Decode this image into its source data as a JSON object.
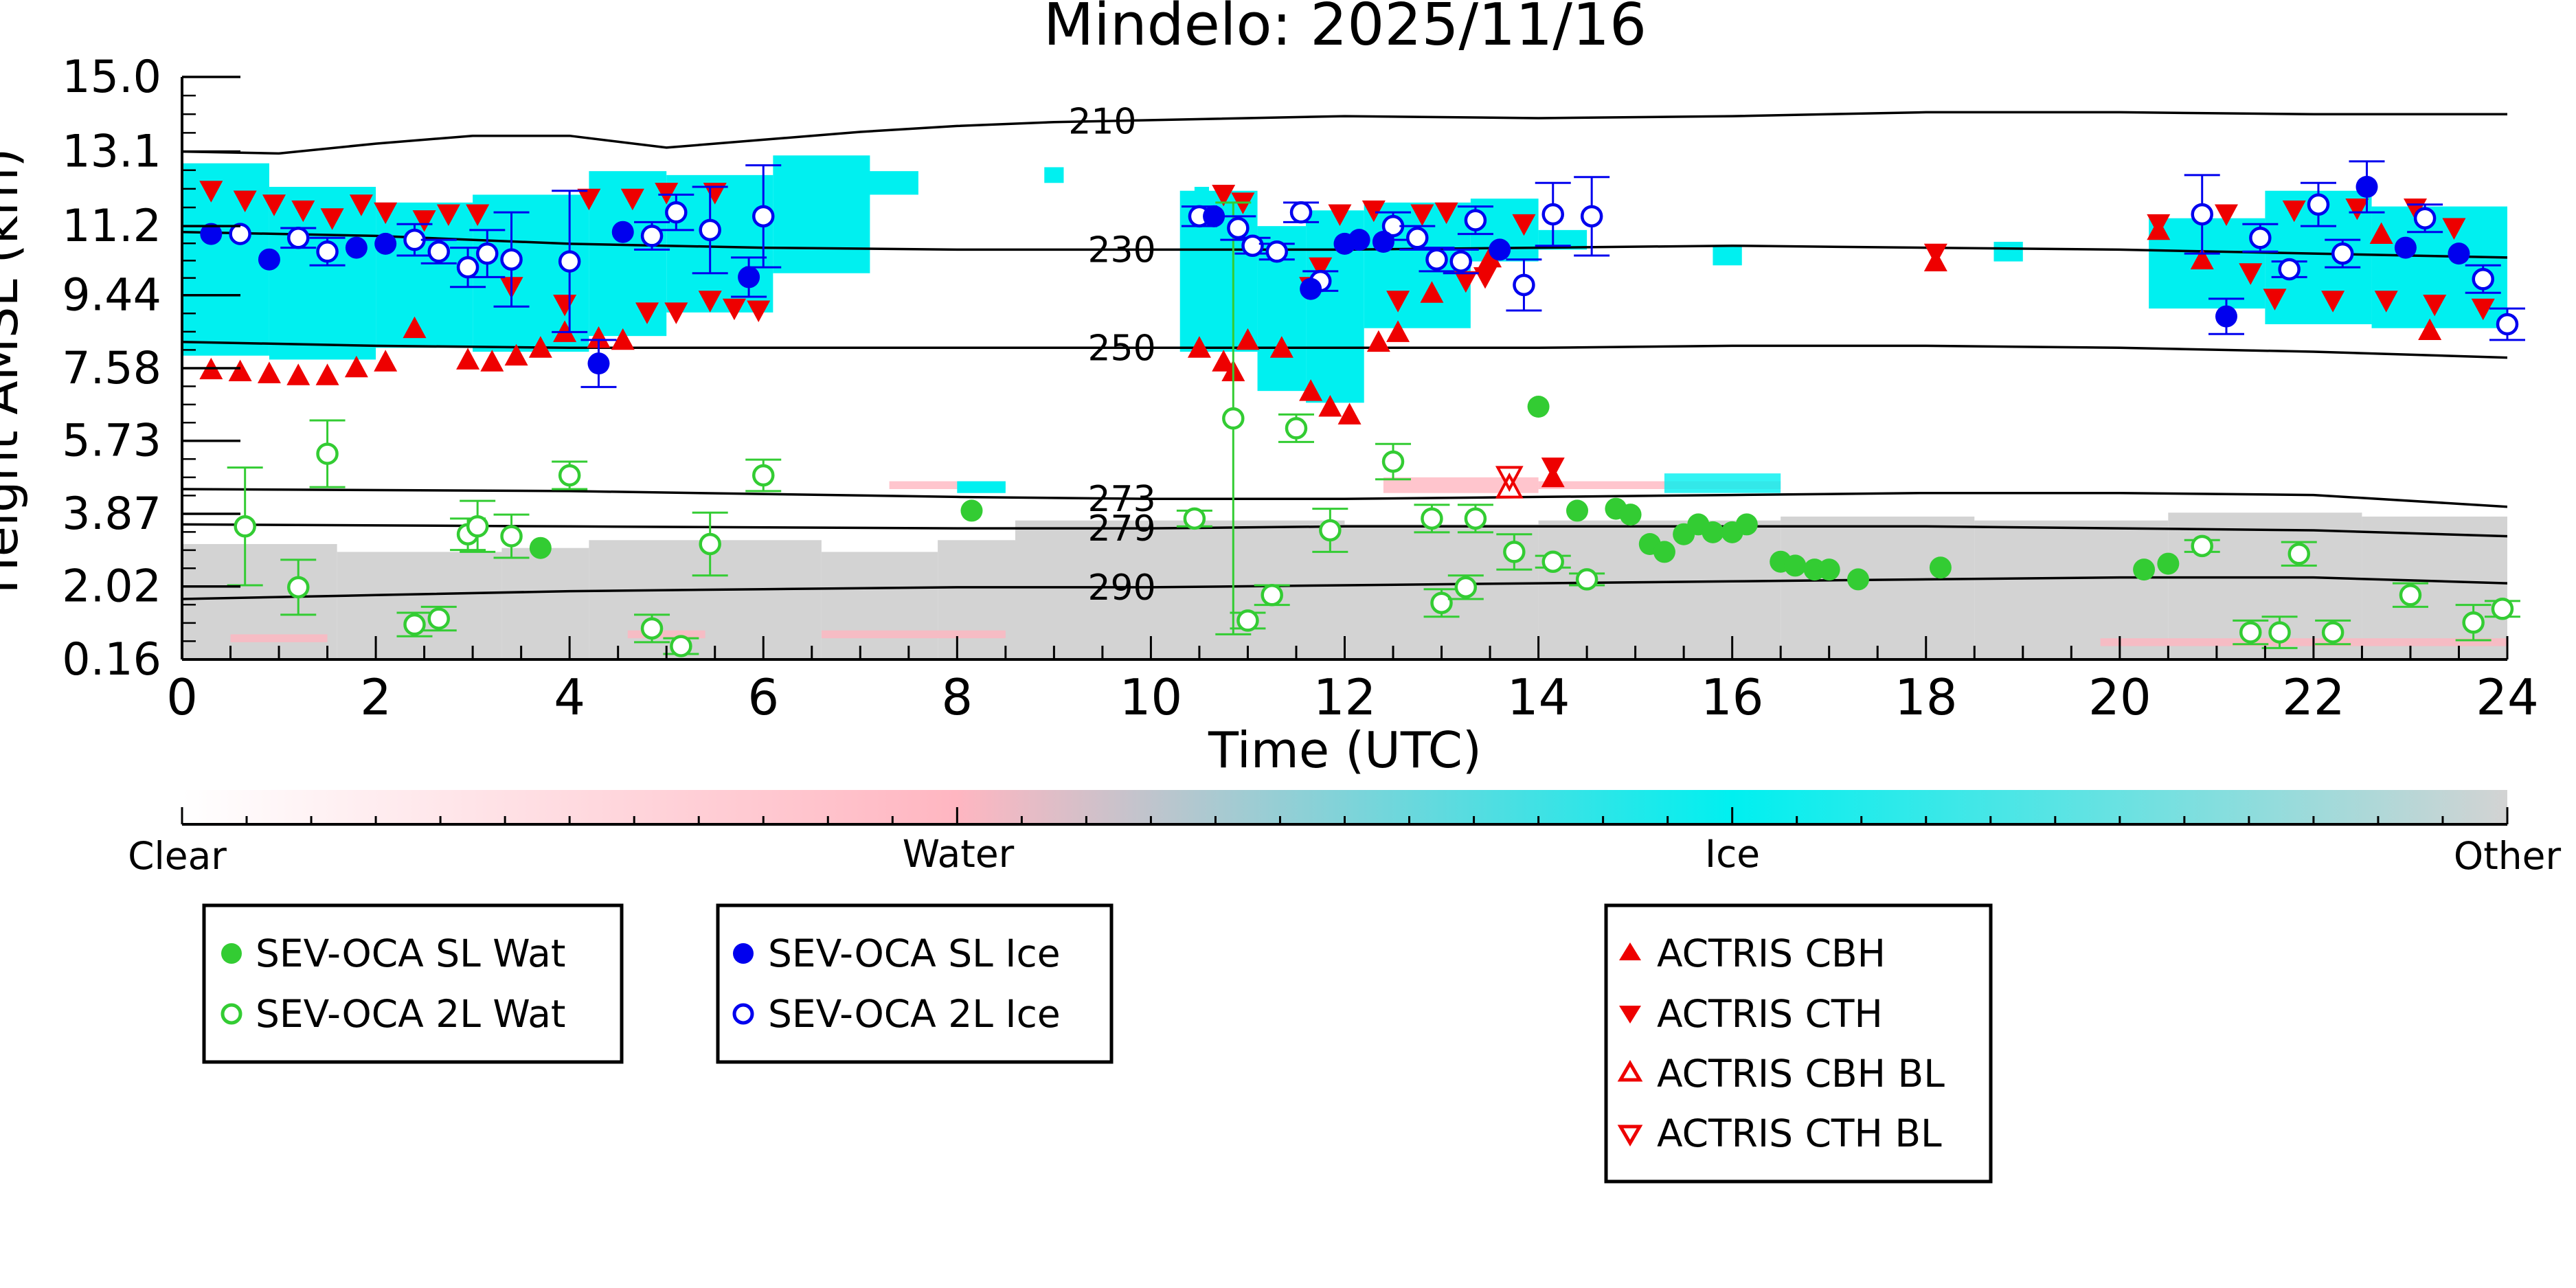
{
  "chart_data": {
    "type": "scatter",
    "title": "Mindelo: 2025/11/16",
    "xlabel": "Time (UTC)",
    "ylabel": "Height AMSL (km)",
    "xlim": [
      0,
      24
    ],
    "ylim": [
      0.16,
      15.0
    ],
    "x_ticks": [
      0,
      2,
      4,
      6,
      8,
      10,
      12,
      14,
      16,
      18,
      20,
      22,
      24
    ],
    "y_ticks": [
      0.16,
      2.02,
      3.87,
      5.73,
      7.58,
      9.44,
      11.2,
      13.1,
      15.0
    ],
    "y_tick_labels": [
      "0.16",
      "2.02",
      "3.87",
      "5.73",
      "7.58",
      "9.44",
      "11.2",
      "13.1",
      "15.0"
    ],
    "colors": {
      "sl_wat": "#33cc33",
      "sl_ice": "#0000ee",
      "cbh": "#ee0000",
      "contour": "#000000",
      "ice_cloud": "#00f0f0",
      "other": "#d3d3d3",
      "water": "#ffb6c1"
    },
    "isotherms": [
      {
        "label": "210",
        "label_x": 9.5,
        "heights": [
          [
            0,
            13.1
          ],
          [
            1,
            13.05
          ],
          [
            2,
            13.3
          ],
          [
            3,
            13.5
          ],
          [
            4,
            13.5
          ],
          [
            5,
            13.2
          ],
          [
            6,
            13.4
          ],
          [
            7,
            13.6
          ],
          [
            8,
            13.75
          ],
          [
            9,
            13.85
          ],
          [
            10,
            13.9
          ],
          [
            12,
            14.0
          ],
          [
            14,
            13.95
          ],
          [
            16,
            14.0
          ],
          [
            18,
            14.1
          ],
          [
            20,
            14.1
          ],
          [
            22,
            14.05
          ],
          [
            24,
            14.05
          ]
        ]
      },
      {
        "label": "230",
        "label_x": 9.7,
        "heights": [
          [
            0,
            11.05
          ],
          [
            2,
            10.95
          ],
          [
            4,
            10.75
          ],
          [
            6,
            10.65
          ],
          [
            8,
            10.6
          ],
          [
            10,
            10.6
          ],
          [
            12,
            10.6
          ],
          [
            14,
            10.65
          ],
          [
            16,
            10.7
          ],
          [
            18,
            10.65
          ],
          [
            20,
            10.6
          ],
          [
            22,
            10.5
          ],
          [
            24,
            10.4
          ]
        ]
      },
      {
        "label": "250",
        "label_x": 9.7,
        "heights": [
          [
            0,
            8.25
          ],
          [
            2,
            8.15
          ],
          [
            4,
            8.1
          ],
          [
            6,
            8.1
          ],
          [
            8,
            8.1
          ],
          [
            10,
            8.1
          ],
          [
            12,
            8.1
          ],
          [
            14,
            8.1
          ],
          [
            16,
            8.15
          ],
          [
            18,
            8.15
          ],
          [
            20,
            8.1
          ],
          [
            22,
            8.0
          ],
          [
            24,
            7.85
          ]
        ]
      },
      {
        "label": "273",
        "label_x": 9.7,
        "heights": [
          [
            0,
            4.5
          ],
          [
            4,
            4.45
          ],
          [
            8,
            4.3
          ],
          [
            10,
            4.25
          ],
          [
            12,
            4.25
          ],
          [
            14,
            4.3
          ],
          [
            16,
            4.35
          ],
          [
            18,
            4.4
          ],
          [
            20,
            4.4
          ],
          [
            22,
            4.35
          ],
          [
            24,
            4.05
          ]
        ]
      },
      {
        "label": "279",
        "label_x": 9.7,
        "heights": [
          [
            0,
            3.6
          ],
          [
            4,
            3.55
          ],
          [
            8,
            3.5
          ],
          [
            10,
            3.5
          ],
          [
            12,
            3.55
          ],
          [
            14,
            3.55
          ],
          [
            16,
            3.55
          ],
          [
            18,
            3.55
          ],
          [
            20,
            3.5
          ],
          [
            22,
            3.45
          ],
          [
            24,
            3.3
          ]
        ]
      },
      {
        "label": "290",
        "label_x": 9.7,
        "heights": [
          [
            0,
            1.7
          ],
          [
            2,
            1.8
          ],
          [
            4,
            1.9
          ],
          [
            6,
            1.95
          ],
          [
            8,
            2.0
          ],
          [
            10,
            2.0
          ],
          [
            12,
            2.05
          ],
          [
            14,
            2.1
          ],
          [
            16,
            2.15
          ],
          [
            18,
            2.2
          ],
          [
            20,
            2.25
          ],
          [
            22,
            2.25
          ],
          [
            24,
            2.1
          ]
        ]
      }
    ],
    "sev_oca_sl_wat": [
      {
        "x": 3.7,
        "y": 3.0
      },
      {
        "x": 8.15,
        "y": 3.95
      },
      {
        "x": 14.0,
        "y": 6.6
      },
      {
        "x": 14.4,
        "y": 3.95
      },
      {
        "x": 14.8,
        "y": 4.0
      },
      {
        "x": 14.95,
        "y": 3.85
      },
      {
        "x": 15.15,
        "y": 3.1
      },
      {
        "x": 15.3,
        "y": 2.9
      },
      {
        "x": 15.5,
        "y": 3.35
      },
      {
        "x": 15.65,
        "y": 3.6
      },
      {
        "x": 15.8,
        "y": 3.4
      },
      {
        "x": 16.0,
        "y": 3.4
      },
      {
        "x": 16.15,
        "y": 3.6
      },
      {
        "x": 16.5,
        "y": 2.65
      },
      {
        "x": 16.65,
        "y": 2.55
      },
      {
        "x": 16.85,
        "y": 2.45
      },
      {
        "x": 17.0,
        "y": 2.45
      },
      {
        "x": 17.3,
        "y": 2.2
      },
      {
        "x": 18.15,
        "y": 2.5
      },
      {
        "x": 20.25,
        "y": 2.45
      },
      {
        "x": 20.5,
        "y": 2.6
      }
    ],
    "sev_oca_2l_wat": [
      {
        "x": 0.65,
        "y": 3.55,
        "err": 1.5
      },
      {
        "x": 1.2,
        "y": 2.0,
        "err": 0.7
      },
      {
        "x": 1.5,
        "y": 5.4,
        "err": 0.85
      },
      {
        "x": 2.4,
        "y": 1.05,
        "err": 0.3
      },
      {
        "x": 2.65,
        "y": 1.2,
        "err": 0.3
      },
      {
        "x": 2.95,
        "y": 3.35,
        "err": 0.4
      },
      {
        "x": 3.05,
        "y": 3.55,
        "err": 0.65
      },
      {
        "x": 3.4,
        "y": 3.3,
        "err": 0.55
      },
      {
        "x": 4.0,
        "y": 4.85,
        "err": 0.35
      },
      {
        "x": 4.85,
        "y": 0.95,
        "err": 0.35
      },
      {
        "x": 5.15,
        "y": 0.5,
        "err": 0.2
      },
      {
        "x": 5.45,
        "y": 3.1,
        "err": 0.8
      },
      {
        "x": 6.0,
        "y": 4.85,
        "err": 0.4
      },
      {
        "x": 10.45,
        "y": 3.75,
        "err": 0.2
      },
      {
        "x": 10.85,
        "y": 6.3,
        "err": 5.5
      },
      {
        "x": 11.0,
        "y": 1.15,
        "err": 0.2
      },
      {
        "x": 11.25,
        "y": 1.8,
        "err": 0.25
      },
      {
        "x": 11.5,
        "y": 6.05,
        "err": 0.35
      },
      {
        "x": 11.85,
        "y": 3.45,
        "err": 0.55
      },
      {
        "x": 12.5,
        "y": 5.2,
        "err": 0.45
      },
      {
        "x": 12.9,
        "y": 3.75,
        "err": 0.35
      },
      {
        "x": 13.0,
        "y": 1.6,
        "err": 0.35
      },
      {
        "x": 13.25,
        "y": 2.0,
        "err": 0.3
      },
      {
        "x": 13.35,
        "y": 3.75,
        "err": 0.35
      },
      {
        "x": 13.75,
        "y": 2.9,
        "err": 0.45
      },
      {
        "x": 14.15,
        "y": 2.65,
        "err": 0.15
      },
      {
        "x": 14.5,
        "y": 2.2,
        "err": 0.15
      },
      {
        "x": 20.85,
        "y": 3.05,
        "err": 0.15
      },
      {
        "x": 21.35,
        "y": 0.85,
        "err": 0.3
      },
      {
        "x": 21.65,
        "y": 0.85,
        "err": 0.4
      },
      {
        "x": 21.85,
        "y": 2.85,
        "err": 0.3
      },
      {
        "x": 22.2,
        "y": 0.85,
        "err": 0.3
      },
      {
        "x": 23.0,
        "y": 1.8,
        "err": 0.3
      },
      {
        "x": 23.65,
        "y": 1.1,
        "err": 0.45
      },
      {
        "x": 23.95,
        "y": 1.45,
        "err": 0.2
      }
    ],
    "sev_oca_sl_ice": [
      {
        "x": 0.3,
        "y": 11.0,
        "err": 0
      },
      {
        "x": 0.9,
        "y": 10.35,
        "err": 0
      },
      {
        "x": 1.8,
        "y": 10.65,
        "err": 0
      },
      {
        "x": 2.1,
        "y": 10.75,
        "err": 0
      },
      {
        "x": 4.3,
        "y": 7.7,
        "err": 0.6
      },
      {
        "x": 4.55,
        "y": 11.05,
        "err": 0
      },
      {
        "x": 5.85,
        "y": 9.9,
        "err": 0.5
      },
      {
        "x": 10.65,
        "y": 11.45,
        "err": 0
      },
      {
        "x": 11.65,
        "y": 9.6,
        "err": 0
      },
      {
        "x": 12.0,
        "y": 10.75,
        "err": 0
      },
      {
        "x": 12.15,
        "y": 10.85,
        "err": 0
      },
      {
        "x": 12.4,
        "y": 10.8,
        "err": 0
      },
      {
        "x": 13.6,
        "y": 10.6,
        "err": 0
      },
      {
        "x": 21.1,
        "y": 8.9,
        "err": 0.45
      },
      {
        "x": 22.55,
        "y": 12.2,
        "err": 0.65
      },
      {
        "x": 22.95,
        "y": 10.65,
        "err": 0
      },
      {
        "x": 23.5,
        "y": 10.5,
        "err": 0
      }
    ],
    "sev_oca_2l_ice": [
      {
        "x": 0.6,
        "y": 11.0,
        "err": 0
      },
      {
        "x": 1.2,
        "y": 10.9,
        "err": 0.25
      },
      {
        "x": 1.5,
        "y": 10.55,
        "err": 0.35
      },
      {
        "x": 2.4,
        "y": 10.85,
        "err": 0.4
      },
      {
        "x": 2.65,
        "y": 10.55,
        "err": 0.3
      },
      {
        "x": 2.95,
        "y": 10.15,
        "err": 0.5
      },
      {
        "x": 3.15,
        "y": 10.5,
        "err": 0.6
      },
      {
        "x": 3.4,
        "y": 10.35,
        "err": 1.2
      },
      {
        "x": 4.0,
        "y": 10.3,
        "err": 1.8
      },
      {
        "x": 4.85,
        "y": 10.95,
        "err": 0.35
      },
      {
        "x": 5.1,
        "y": 11.55,
        "err": 0.45
      },
      {
        "x": 5.45,
        "y": 11.1,
        "err": 1.1
      },
      {
        "x": 6.0,
        "y": 11.45,
        "err": 1.3
      },
      {
        "x": 10.5,
        "y": 11.45,
        "err": 0.25
      },
      {
        "x": 10.9,
        "y": 11.15,
        "err": 0.3
      },
      {
        "x": 11.05,
        "y": 10.7,
        "err": 0.2
      },
      {
        "x": 11.3,
        "y": 10.55,
        "err": 0.2
      },
      {
        "x": 11.55,
        "y": 11.55,
        "err": 0.25
      },
      {
        "x": 11.75,
        "y": 9.8,
        "err": 0.25
      },
      {
        "x": 12.5,
        "y": 11.2,
        "err": 0.35
      },
      {
        "x": 12.75,
        "y": 10.9,
        "err": 0.3
      },
      {
        "x": 12.95,
        "y": 10.35,
        "err": 0.3
      },
      {
        "x": 13.2,
        "y": 10.3,
        "err": 0.3
      },
      {
        "x": 13.35,
        "y": 11.35,
        "err": 0.35
      },
      {
        "x": 13.85,
        "y": 9.7,
        "err": 0.65
      },
      {
        "x": 14.15,
        "y": 11.5,
        "err": 0.8
      },
      {
        "x": 14.55,
        "y": 11.45,
        "err": 1.0
      },
      {
        "x": 20.85,
        "y": 11.5,
        "err": 1.0
      },
      {
        "x": 21.45,
        "y": 10.9,
        "err": 0.35
      },
      {
        "x": 21.75,
        "y": 10.1,
        "err": 0.2
      },
      {
        "x": 22.05,
        "y": 11.75,
        "err": 0.55
      },
      {
        "x": 22.3,
        "y": 10.5,
        "err": 0.35
      },
      {
        "x": 23.15,
        "y": 11.4,
        "err": 0.35
      },
      {
        "x": 23.75,
        "y": 9.85,
        "err": 0.35
      },
      {
        "x": 24.0,
        "y": 8.7,
        "err": 0.4
      }
    ],
    "actris_cbh": [
      {
        "x": 0.3,
        "y": 7.55
      },
      {
        "x": 0.6,
        "y": 7.5
      },
      {
        "x": 0.9,
        "y": 7.45
      },
      {
        "x": 1.2,
        "y": 7.4
      },
      {
        "x": 1.5,
        "y": 7.4
      },
      {
        "x": 1.8,
        "y": 7.6
      },
      {
        "x": 2.1,
        "y": 7.75
      },
      {
        "x": 2.4,
        "y": 8.6
      },
      {
        "x": 2.95,
        "y": 7.8
      },
      {
        "x": 3.2,
        "y": 7.75
      },
      {
        "x": 3.45,
        "y": 7.9
      },
      {
        "x": 3.7,
        "y": 8.1
      },
      {
        "x": 3.95,
        "y": 8.5
      },
      {
        "x": 4.3,
        "y": 8.35
      },
      {
        "x": 4.55,
        "y": 8.3
      },
      {
        "x": 10.5,
        "y": 8.1
      },
      {
        "x": 10.75,
        "y": 7.75
      },
      {
        "x": 10.85,
        "y": 7.5
      },
      {
        "x": 11.0,
        "y": 8.3
      },
      {
        "x": 11.35,
        "y": 8.1
      },
      {
        "x": 11.65,
        "y": 7.0
      },
      {
        "x": 11.85,
        "y": 6.6
      },
      {
        "x": 12.05,
        "y": 6.4
      },
      {
        "x": 12.35,
        "y": 8.25
      },
      {
        "x": 12.55,
        "y": 8.5
      },
      {
        "x": 12.9,
        "y": 9.5
      },
      {
        "x": 13.5,
        "y": 10.4
      },
      {
        "x": 14.15,
        "y": 4.8
      },
      {
        "x": 18.1,
        "y": 10.3
      },
      {
        "x": 20.4,
        "y": 11.1
      },
      {
        "x": 20.85,
        "y": 10.35
      },
      {
        "x": 22.7,
        "y": 11.0
      },
      {
        "x": 23.2,
        "y": 8.55
      }
    ],
    "actris_cth": [
      {
        "x": 0.3,
        "y": 12.1
      },
      {
        "x": 0.65,
        "y": 11.85
      },
      {
        "x": 0.95,
        "y": 11.75
      },
      {
        "x": 1.25,
        "y": 11.6
      },
      {
        "x": 1.55,
        "y": 11.4
      },
      {
        "x": 1.85,
        "y": 11.75
      },
      {
        "x": 2.1,
        "y": 11.55
      },
      {
        "x": 2.5,
        "y": 11.35
      },
      {
        "x": 2.75,
        "y": 11.5
      },
      {
        "x": 3.05,
        "y": 11.5
      },
      {
        "x": 3.4,
        "y": 9.65
      },
      {
        "x": 3.95,
        "y": 9.2
      },
      {
        "x": 4.2,
        "y": 11.9
      },
      {
        "x": 4.65,
        "y": 11.9
      },
      {
        "x": 4.8,
        "y": 9.0
      },
      {
        "x": 5.0,
        "y": 12.05
      },
      {
        "x": 5.1,
        "y": 9.0
      },
      {
        "x": 5.45,
        "y": 9.3
      },
      {
        "x": 5.5,
        "y": 12.05
      },
      {
        "x": 5.7,
        "y": 9.1
      },
      {
        "x": 5.95,
        "y": 9.05
      },
      {
        "x": 10.75,
        "y": 12.0
      },
      {
        "x": 10.95,
        "y": 11.8
      },
      {
        "x": 11.65,
        "y": 9.65
      },
      {
        "x": 11.75,
        "y": 10.15
      },
      {
        "x": 11.95,
        "y": 11.5
      },
      {
        "x": 12.3,
        "y": 11.6
      },
      {
        "x": 12.55,
        "y": 9.3
      },
      {
        "x": 12.8,
        "y": 11.5
      },
      {
        "x": 13.05,
        "y": 11.55
      },
      {
        "x": 13.25,
        "y": 9.8
      },
      {
        "x": 13.45,
        "y": 9.9
      },
      {
        "x": 13.85,
        "y": 11.25
      },
      {
        "x": 14.15,
        "y": 5.05
      },
      {
        "x": 18.1,
        "y": 10.5
      },
      {
        "x": 20.4,
        "y": 11.25
      },
      {
        "x": 21.1,
        "y": 11.5
      },
      {
        "x": 21.35,
        "y": 10.0
      },
      {
        "x": 21.6,
        "y": 9.35
      },
      {
        "x": 21.8,
        "y": 11.6
      },
      {
        "x": 22.2,
        "y": 9.3
      },
      {
        "x": 22.45,
        "y": 11.65
      },
      {
        "x": 22.75,
        "y": 9.3
      },
      {
        "x": 23.05,
        "y": 11.65
      },
      {
        "x": 23.25,
        "y": 9.2
      },
      {
        "x": 23.45,
        "y": 11.15
      },
      {
        "x": 23.75,
        "y": 9.1
      }
    ],
    "actris_cbh_bl": [
      {
        "x": 13.7,
        "y": 4.55
      }
    ],
    "actris_cth_bl": [
      {
        "x": 13.7,
        "y": 4.8
      }
    ],
    "colorbar": {
      "labels": [
        "Clear",
        "Water",
        "Ice",
        "Other"
      ]
    },
    "legend": {
      "sl_wat": "SEV-OCA SL Wat",
      "l2_wat": "SEV-OCA 2L Wat",
      "sl_ice": "SEV-OCA SL Ice",
      "l2_ice": "SEV-OCA 2L Ice",
      "cbh": "ACTRIS CBH",
      "cth": "ACTRIS CTH",
      "cbh_bl": "ACTRIS CBH BL",
      "cth_bl": "ACTRIS CTH BL"
    }
  }
}
